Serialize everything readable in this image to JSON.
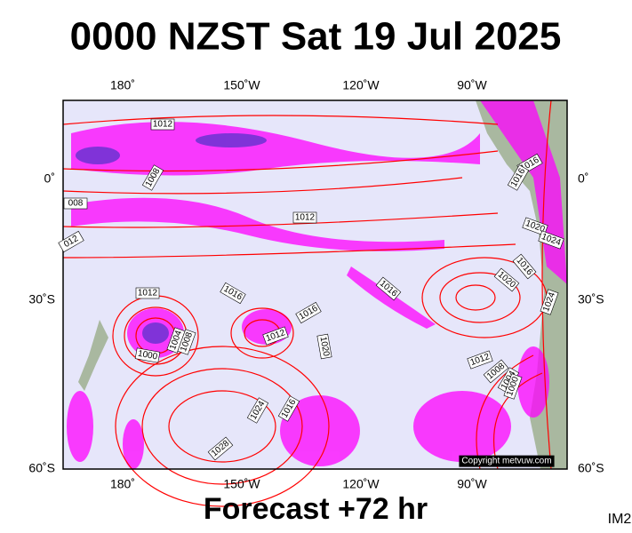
{
  "title": "0000 NZST Sat 19 Jul 2025",
  "map": {
    "lon_labels": [
      "180˚",
      "150˚W",
      "120˚W",
      "90˚W"
    ],
    "lat_labels": [
      "0˚",
      "30˚S",
      "60˚S"
    ],
    "isobar_labels": [
      "1012",
      "1008",
      "008",
      "1012",
      "012",
      "1016",
      "1016",
      "1016",
      "1012",
      "1012",
      "1000",
      "1004",
      "1008",
      "1020",
      "1024",
      "1016",
      "1028",
      "1016",
      "1020",
      "1012",
      "1008",
      "1004",
      "1000",
      "1024",
      "1016",
      "1016",
      "1020",
      "1024"
    ],
    "copyright": "Copyright metvuw.com"
  },
  "footer": "Forecast +72 hr",
  "code": "IM2"
}
